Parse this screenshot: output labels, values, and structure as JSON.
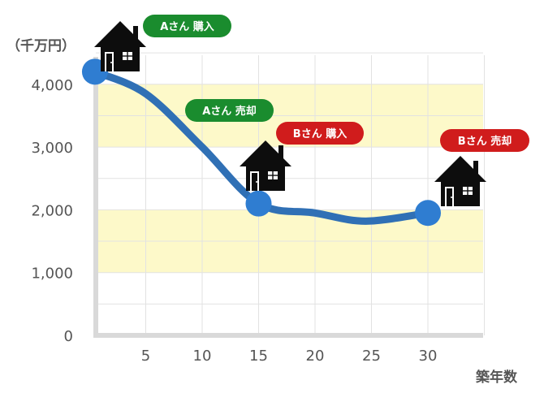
{
  "chart_data": {
    "type": "line",
    "y_unit_label": "（千万円）",
    "xlabel": "築年数",
    "x_ticks": [
      5,
      10,
      15,
      20,
      25,
      30
    ],
    "y_ticks": [
      "0",
      "1,000",
      "2,000",
      "3,000",
      "4,000"
    ],
    "xlim": [
      0,
      35
    ],
    "ylim": [
      0,
      4500
    ],
    "grid": true,
    "bands": [
      [
        1000,
        2000
      ],
      [
        3000,
        4000
      ]
    ],
    "band_color": "#fdf9c9",
    "line_color": "#3070b5",
    "marker_color": "#2f7dd1",
    "points": [
      {
        "x": 0.5,
        "y": 4200
      },
      {
        "x": 15,
        "y": 2100
      },
      {
        "x": 30,
        "y": 1950
      }
    ],
    "curve": [
      {
        "x": 0.5,
        "y": 4200
      },
      {
        "x": 5,
        "y": 3850
      },
      {
        "x": 10,
        "y": 3000
      },
      {
        "x": 15,
        "y": 2100
      },
      {
        "x": 20,
        "y": 1950
      },
      {
        "x": 24.5,
        "y": 1820
      },
      {
        "x": 30,
        "y": 1950
      }
    ],
    "annotations": [
      {
        "text": "Aさん 購入",
        "color": "#1a8c2e"
      },
      {
        "text": "Aさん 売却",
        "color": "#1a8c2e"
      },
      {
        "text": "Bさん 購入",
        "color": "#d01c1c"
      },
      {
        "text": "Bさん 売却",
        "color": "#d01c1c"
      }
    ],
    "icons": [
      "house-icon",
      "house-icon",
      "house-icon"
    ]
  }
}
